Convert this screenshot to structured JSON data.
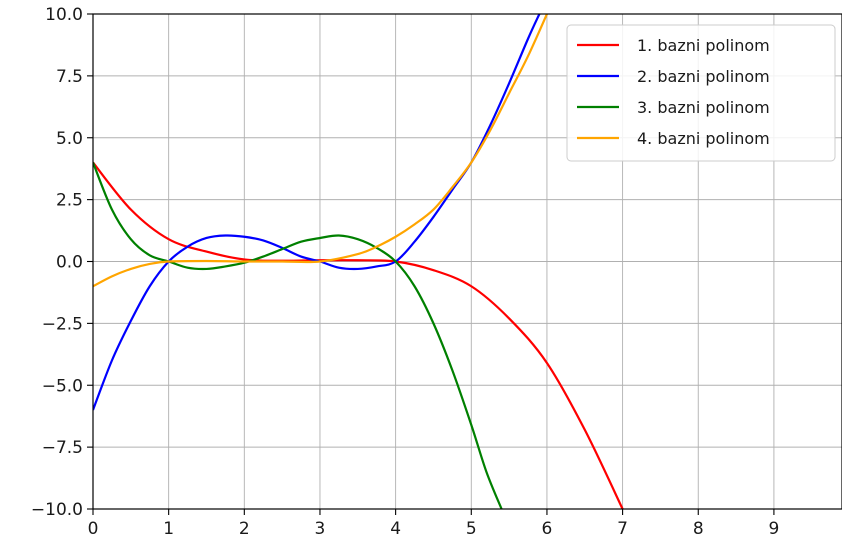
{
  "chart_data": {
    "type": "line",
    "title": "",
    "xlabel": "",
    "ylabel": "",
    "xlim": [
      0,
      9.9
    ],
    "ylim": [
      -10,
      10
    ],
    "grid": true,
    "legend_position": "top-right",
    "x_ticks": [
      0,
      1,
      2,
      3,
      4,
      5,
      6,
      7,
      8,
      9
    ],
    "x_tick_labels": [
      "0",
      "1",
      "2",
      "3",
      "4",
      "5",
      "6",
      "7",
      "8",
      "9"
    ],
    "y_ticks": [
      -10,
      -7.5,
      -5,
      -2.5,
      0,
      2.5,
      5,
      7.5,
      10
    ],
    "y_tick_labels": [
      "−10.0",
      "−7.5",
      "−5.0",
      "−2.5",
      "0.0",
      "2.5",
      "5.0",
      "7.5",
      "10.0"
    ],
    "series": [
      {
        "name": "1. bazni polinom",
        "color": "#ff0000",
        "x": [
          0,
          0.5,
          1,
          1.5,
          2,
          2.5,
          3,
          3.5,
          4,
          4.5,
          5,
          5.5,
          6,
          6.5,
          7
        ],
        "y": [
          4,
          2.1,
          0.9,
          0.4,
          0.08,
          0.03,
          0.05,
          0.05,
          0,
          -0.35,
          -1,
          -2.3,
          -4.1,
          -6.8,
          -10
        ]
      },
      {
        "name": "2. bazni polinom",
        "color": "#0000ff",
        "x": [
          0,
          0.25,
          0.5,
          0.75,
          1,
          1.25,
          1.5,
          1.75,
          2,
          2.25,
          2.5,
          2.75,
          3,
          3.25,
          3.5,
          3.75,
          4,
          4.25,
          4.5,
          4.75,
          5,
          5.25,
          5.5,
          5.75,
          5.9
        ],
        "y": [
          -6,
          -4,
          -2.4,
          -1,
          0,
          0.6,
          0.95,
          1.05,
          1,
          0.85,
          0.55,
          0.2,
          0,
          -0.25,
          -0.3,
          -0.2,
          0,
          0.8,
          1.8,
          2.9,
          4,
          5.5,
          7.2,
          9.0,
          10
        ]
      },
      {
        "name": "3. bazni polinom",
        "color": "#008000",
        "x": [
          0,
          0.25,
          0.5,
          0.75,
          1,
          1.25,
          1.5,
          1.75,
          2,
          2.25,
          2.5,
          2.75,
          3,
          3.25,
          3.5,
          3.75,
          4,
          4.25,
          4.5,
          4.75,
          5,
          5.2,
          5.4
        ],
        "y": [
          4,
          2.1,
          0.9,
          0.25,
          0,
          -0.25,
          -0.3,
          -0.2,
          -0.05,
          0.2,
          0.5,
          0.8,
          0.95,
          1.05,
          0.9,
          0.55,
          0,
          -1,
          -2.5,
          -4.4,
          -6.6,
          -8.5,
          -10
        ]
      },
      {
        "name": "4. bazni polinom",
        "color": "#ffa500",
        "x": [
          0,
          0.25,
          0.5,
          0.75,
          1,
          1.5,
          2,
          2.5,
          3,
          3.5,
          3.75,
          4,
          4.25,
          4.5,
          4.75,
          5,
          5.25,
          5.5,
          5.75,
          6
        ],
        "y": [
          -1,
          -0.6,
          -0.3,
          -0.1,
          0,
          0.02,
          0,
          0,
          0,
          0.3,
          0.6,
          1,
          1.5,
          2.1,
          3.0,
          4,
          5.3,
          6.8,
          8.3,
          10
        ]
      }
    ]
  }
}
